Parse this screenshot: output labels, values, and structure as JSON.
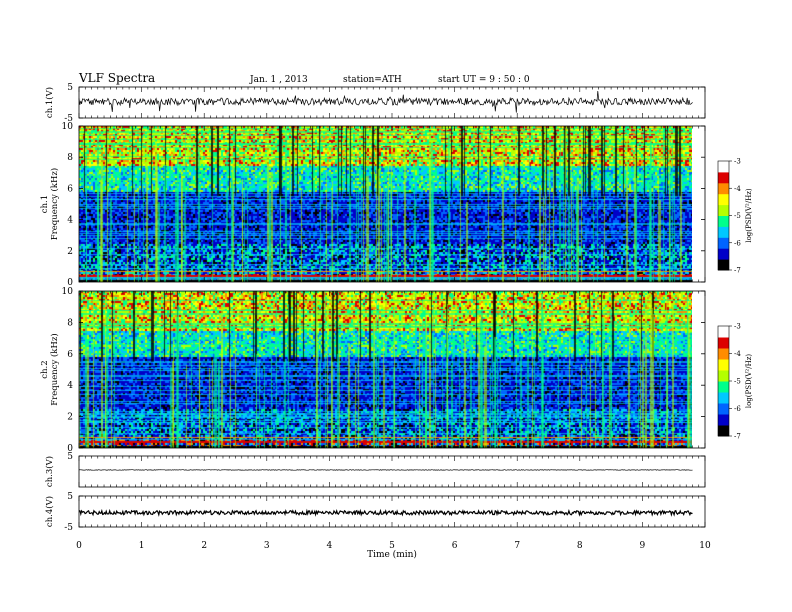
{
  "header": {
    "title": "VLF  Spectra",
    "date": "Jan. 1 , 2013",
    "station": "station=ATH",
    "start": "start  UT =   9 : 50 : 0"
  },
  "chart_data": {
    "type": "heatmap",
    "xlabel": "Time  (min)",
    "xlim": [
      0,
      10
    ],
    "xticks": [
      "0",
      "1",
      "2",
      "3",
      "4",
      "5",
      "6",
      "7",
      "8",
      "9",
      "10"
    ],
    "data_end_min": 9.8,
    "panels": [
      {
        "kind": "waveform",
        "ylabel": "ch.1(V)",
        "ylim": [
          -5,
          5
        ],
        "yticks": [
          "5",
          "-5"
        ],
        "level": 0.3,
        "noise": "high"
      },
      {
        "kind": "spectrogram",
        "ylabel": [
          "ch.1",
          "Frequency  (kHz)"
        ],
        "ylim": [
          0,
          10
        ],
        "yticks": [
          "0",
          "2",
          "4",
          "6",
          "8",
          "10"
        ],
        "colorbar": {
          "label": "log(PSD(V²/Hz)",
          "ticks": [
            "-3",
            "-4",
            "-5",
            "-6",
            "-7"
          ],
          "range": [
            -7,
            -3
          ]
        }
      },
      {
        "kind": "spectrogram",
        "ylabel": [
          "ch.2",
          "Frequency  (kHz)"
        ],
        "ylim": [
          0,
          10
        ],
        "yticks": [
          "0",
          "2",
          "4",
          "6",
          "8",
          "10"
        ],
        "colorbar": {
          "label": "log(PSD(V²/Hz)",
          "ticks": [
            "-3",
            "-4",
            "-5",
            "-6",
            "-7"
          ],
          "range": [
            -7,
            -3
          ]
        }
      },
      {
        "kind": "waveform",
        "ylabel": "ch.3(V)",
        "ylim": [
          -5,
          5
        ],
        "yticks": [
          "5"
        ],
        "level": 0.5,
        "noise": "flat"
      },
      {
        "kind": "waveform",
        "ylabel": "ch.4(V)",
        "ylim": [
          -5,
          5
        ],
        "yticks": [
          "5",
          "-5"
        ],
        "level": -0.4,
        "noise": "thick"
      }
    ],
    "colormap": [
      "#000000",
      "#0000c8",
      "#0064ff",
      "#00c8ff",
      "#00ff8c",
      "#b4ff00",
      "#ffff00",
      "#ff8c00",
      "#dc0000",
      "#ffffff"
    ]
  }
}
